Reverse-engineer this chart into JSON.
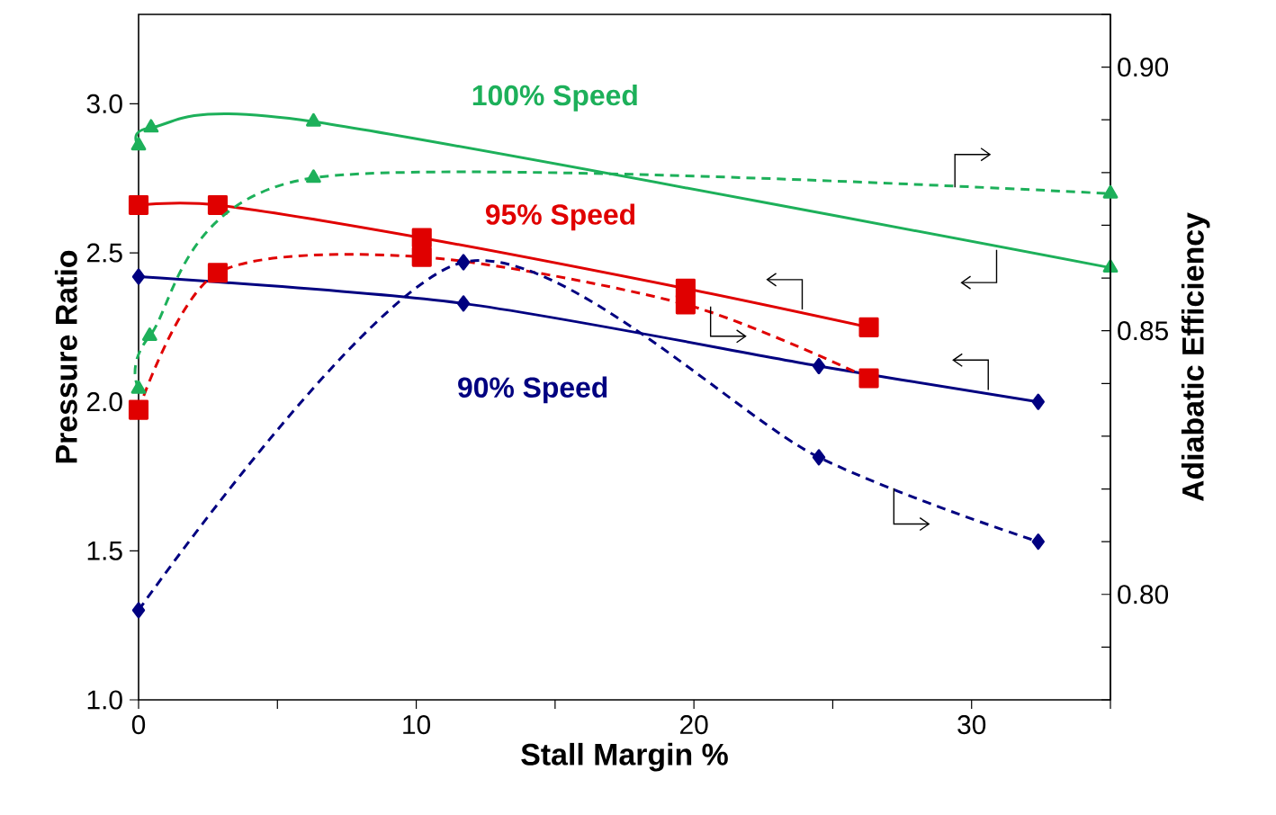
{
  "chart_data": {
    "type": "line",
    "xlabel": "Stall Margin %",
    "ylabel": "Pressure Ratio",
    "y2label": "Adiabatic Efficiency",
    "xlim": [
      0,
      35
    ],
    "xticks": [
      0,
      {
        "value": 5,
        "label": null
      },
      10,
      {
        "value": 15,
        "label": null
      },
      20,
      {
        "value": 25,
        "label": null
      },
      30,
      {
        "value": 35,
        "label": null
      }
    ],
    "ylim": [
      1,
      3.3
    ],
    "yticks": [
      {
        "value": 1,
        "label": "1.0"
      },
      1.5,
      {
        "value": 2,
        "label": "2.0"
      },
      2.5,
      {
        "value": 3,
        "label": "3.0"
      }
    ],
    "y2lim": [
      0.78,
      0.91
    ],
    "y2ticks": [
      {
        "value": 0.78,
        "label": null
      },
      {
        "value": 0.79,
        "label": null
      },
      {
        "value": 0.8,
        "label": "0.80"
      },
      {
        "value": 0.81,
        "label": null
      },
      {
        "value": 0.82,
        "label": null
      },
      {
        "value": 0.83,
        "label": null
      },
      {
        "value": 0.84,
        "label": null
      },
      {
        "value": 0.85,
        "label": "0.85"
      },
      {
        "value": 0.86,
        "label": null
      },
      {
        "value": 0.87,
        "label": null
      },
      {
        "value": 0.88,
        "label": null
      },
      {
        "value": 0.89,
        "label": null
      },
      {
        "value": 0.9,
        "label": "0.90"
      },
      {
        "value": 0.91,
        "label": null
      }
    ],
    "grid": false,
    "series": [
      {
        "color": "#1db05a",
        "marker": "triangle",
        "line_style": "solid",
        "x": [
          0,
          0.45,
          6.3,
          35
        ],
        "values": [
          2.86,
          2.92,
          2.94,
          2.45
        ]
      },
      {
        "color": "#1db05a",
        "marker": "triangle",
        "line_style": "dashed",
        "axis": "y2",
        "x": [
          0,
          0.4,
          6.3,
          35
        ],
        "values": [
          0.839,
          0.849,
          0.879,
          0.876
        ]
      },
      {
        "color": "#e00000",
        "marker": "square",
        "line_style": "solid",
        "x": [
          0,
          2.85,
          10.2,
          19.7,
          26.3
        ],
        "values": [
          2.66,
          2.66,
          2.55,
          2.38,
          2.25
        ]
      },
      {
        "color": "#e00000",
        "marker": "square",
        "line_style": "dashed",
        "axis": "y2",
        "x": [
          0,
          2.85,
          10.2,
          19.7,
          26.3
        ],
        "values": [
          0.835,
          0.861,
          0.864,
          0.855,
          0.841
        ]
      },
      {
        "color": "#000080",
        "marker": "diamond",
        "line_style": "solid",
        "x": [
          0,
          11.7,
          24.5,
          32.4
        ],
        "values": [
          2.42,
          2.33,
          2.12,
          2.0
        ]
      },
      {
        "color": "#000080",
        "marker": "diamond",
        "line_style": "dashed",
        "axis": "y2",
        "x": [
          0,
          11.7,
          24.5,
          32.4
        ],
        "values": [
          0.797,
          0.863,
          0.826,
          0.81
        ]
      }
    ],
    "annotations": [
      "100% Speed",
      "95% Speed",
      "90% Speed"
    ]
  }
}
